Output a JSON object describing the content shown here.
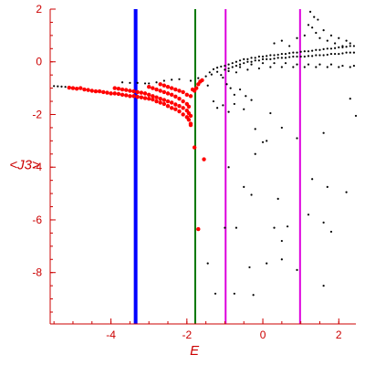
{
  "chart_data": {
    "type": "scatter",
    "title": "",
    "xlabel": "E",
    "ylabel": "<J3>",
    "xlim": [
      -5.6,
      2.45
    ],
    "ylim": [
      -9.95,
      2
    ],
    "grid": false,
    "colors": {
      "axis": "#cc0000",
      "highlight_points": "#ff0000",
      "other_points": "#000000",
      "blue_line": "#0000ff",
      "green_line": "#007700",
      "magenta_line": "#dd00dd"
    },
    "x_ticks": [
      {
        "value": -4,
        "label": "-4"
      },
      {
        "value": -2,
        "label": "-2"
      },
      {
        "value": 0,
        "label": "0"
      },
      {
        "value": 2,
        "label": "2"
      }
    ],
    "y_ticks": [
      {
        "value": 2,
        "label": "2"
      },
      {
        "value": 0,
        "label": "0"
      },
      {
        "value": -2,
        "label": "-2"
      },
      {
        "value": -4,
        "label": "-4"
      },
      {
        "value": -6,
        "label": "-6"
      },
      {
        "value": -8,
        "label": "-8"
      }
    ],
    "vertical_lines": [
      {
        "name": "blue",
        "x": -3.35,
        "color": "#0000ff",
        "width": 4
      },
      {
        "name": "green",
        "x": -1.78,
        "color": "#007700",
        "width": 2
      },
      {
        "name": "magenta-1",
        "x": -0.98,
        "color": "#dd00dd",
        "width": 2
      },
      {
        "name": "magenta-2",
        "x": 0.98,
        "color": "#dd00dd",
        "width": 2
      }
    ],
    "series": [
      {
        "color": "#ff0000",
        "points": [
          [
            -5.1,
            -0.98
          ],
          [
            -5.0,
            -1.0
          ],
          [
            -4.9,
            -1.02
          ],
          [
            -4.8,
            -1.0
          ],
          [
            -4.7,
            -1.05
          ],
          [
            -4.6,
            -1.07
          ],
          [
            -4.5,
            -1.1
          ],
          [
            -4.4,
            -1.12
          ],
          [
            -4.3,
            -1.12
          ],
          [
            -4.2,
            -1.15
          ],
          [
            -4.1,
            -1.17
          ],
          [
            -4.0,
            -1.2
          ],
          [
            -3.9,
            -1.2
          ],
          [
            -3.8,
            -1.22
          ],
          [
            -3.7,
            -1.25
          ],
          [
            -3.6,
            -1.27
          ],
          [
            -3.5,
            -1.3
          ],
          [
            -3.4,
            -1.3
          ],
          [
            -3.3,
            -1.33
          ],
          [
            -3.2,
            -1.35
          ],
          [
            -3.1,
            -1.38
          ],
          [
            -3.0,
            -1.4
          ],
          [
            -2.9,
            -1.43
          ],
          [
            -2.8,
            -1.5
          ],
          [
            -2.7,
            -1.55
          ],
          [
            -2.6,
            -1.6
          ],
          [
            -2.5,
            -1.68
          ],
          [
            -2.4,
            -1.75
          ],
          [
            -2.3,
            -1.8
          ],
          [
            -2.2,
            -1.88
          ],
          [
            -2.1,
            -2.0
          ],
          [
            -2.0,
            -2.1
          ],
          [
            -1.95,
            -2.2
          ],
          [
            -1.9,
            -2.35
          ],
          [
            -3.9,
            -1.0
          ],
          [
            -3.8,
            -1.02
          ],
          [
            -3.7,
            -1.05
          ],
          [
            -3.6,
            -1.07
          ],
          [
            -3.5,
            -1.1
          ],
          [
            -3.4,
            -1.12
          ],
          [
            -3.3,
            -1.15
          ],
          [
            -3.2,
            -1.17
          ],
          [
            -3.1,
            -1.2
          ],
          [
            -3.0,
            -1.25
          ],
          [
            -2.9,
            -1.3
          ],
          [
            -2.8,
            -1.35
          ],
          [
            -2.7,
            -1.4
          ],
          [
            -2.6,
            -1.45
          ],
          [
            -2.5,
            -1.5
          ],
          [
            -2.4,
            -1.55
          ],
          [
            -2.3,
            -1.62
          ],
          [
            -2.2,
            -1.68
          ],
          [
            -2.1,
            -1.75
          ],
          [
            -2.0,
            -1.85
          ],
          [
            -1.95,
            -1.95
          ],
          [
            -1.9,
            -2.05
          ],
          [
            -3.0,
            -0.95
          ],
          [
            -2.9,
            -1.0
          ],
          [
            -2.8,
            -1.05
          ],
          [
            -2.7,
            -1.1
          ],
          [
            -2.6,
            -1.15
          ],
          [
            -2.5,
            -1.2
          ],
          [
            -2.4,
            -1.25
          ],
          [
            -2.3,
            -1.32
          ],
          [
            -2.2,
            -1.4
          ],
          [
            -2.1,
            -1.5
          ],
          [
            -2.0,
            -1.6
          ],
          [
            -1.95,
            -1.7
          ],
          [
            -2.7,
            -0.85
          ],
          [
            -2.6,
            -0.9
          ],
          [
            -2.5,
            -0.95
          ],
          [
            -2.4,
            -1.0
          ],
          [
            -2.3,
            -1.05
          ],
          [
            -2.2,
            -1.1
          ],
          [
            -2.1,
            -1.15
          ],
          [
            -2.0,
            -1.25
          ],
          [
            -1.9,
            -1.3
          ],
          [
            -1.85,
            -1.05
          ],
          [
            -1.8,
            -1.1
          ],
          [
            -1.75,
            -1.0
          ],
          [
            -1.7,
            -0.85
          ],
          [
            -1.65,
            -0.75
          ],
          [
            -1.6,
            -0.7
          ],
          [
            -1.8,
            -3.25
          ],
          [
            -1.55,
            -3.7
          ],
          [
            -1.7,
            -6.35
          ],
          [
            -1.9,
            -2.4
          ]
        ]
      },
      {
        "color": "#000000",
        "points": [
          [
            -5.5,
            -0.92
          ],
          [
            -5.4,
            -0.93
          ],
          [
            -5.3,
            -0.94
          ],
          [
            -5.2,
            -0.95
          ],
          [
            -3.7,
            -0.78
          ],
          [
            -3.5,
            -0.8
          ],
          [
            -3.3,
            -0.8
          ],
          [
            -3.1,
            -0.82
          ],
          [
            -3.0,
            -0.82
          ],
          [
            -2.8,
            -0.78
          ],
          [
            -2.6,
            -0.72
          ],
          [
            -2.4,
            -0.68
          ],
          [
            -2.2,
            -0.66
          ],
          [
            -1.4,
            -0.4
          ],
          [
            -1.3,
            -0.28
          ],
          [
            -1.2,
            -0.22
          ],
          [
            -1.1,
            -0.18
          ],
          [
            -1.0,
            -0.15
          ],
          [
            -0.9,
            -0.1
          ],
          [
            -0.8,
            -0.05
          ],
          [
            -0.7,
            0.0
          ],
          [
            -0.6,
            0.05
          ],
          [
            -0.5,
            0.1
          ],
          [
            -0.4,
            0.1
          ],
          [
            -0.3,
            0.15
          ],
          [
            -0.2,
            0.15
          ],
          [
            -0.1,
            0.2
          ],
          [
            0.0,
            0.2
          ],
          [
            0.1,
            0.22
          ],
          [
            0.2,
            0.25
          ],
          [
            0.3,
            0.25
          ],
          [
            0.4,
            0.27
          ],
          [
            0.5,
            0.3
          ],
          [
            0.6,
            0.3
          ],
          [
            0.7,
            0.33
          ],
          [
            0.8,
            0.35
          ],
          [
            0.9,
            0.35
          ],
          [
            1.0,
            0.38
          ],
          [
            1.1,
            0.4
          ],
          [
            1.2,
            0.4
          ],
          [
            1.3,
            0.42
          ],
          [
            1.4,
            0.45
          ],
          [
            1.5,
            0.45
          ],
          [
            1.6,
            0.48
          ],
          [
            1.7,
            0.5
          ],
          [
            1.8,
            0.5
          ],
          [
            1.9,
            0.52
          ],
          [
            2.0,
            0.55
          ],
          [
            2.1,
            0.55
          ],
          [
            2.2,
            0.57
          ],
          [
            2.3,
            0.6
          ],
          [
            2.4,
            0.6
          ],
          [
            -1.0,
            -0.3
          ],
          [
            -0.9,
            -0.25
          ],
          [
            -0.8,
            -0.2
          ],
          [
            -0.7,
            -0.15
          ],
          [
            -0.6,
            -0.1
          ],
          [
            -0.5,
            -0.05
          ],
          [
            -0.4,
            0.0
          ],
          [
            -0.3,
            0.0
          ],
          [
            -0.2,
            0.05
          ],
          [
            -0.1,
            0.05
          ],
          [
            0.0,
            0.1
          ],
          [
            0.1,
            0.1
          ],
          [
            0.2,
            0.1
          ],
          [
            0.3,
            0.12
          ],
          [
            0.4,
            0.15
          ],
          [
            0.5,
            0.15
          ],
          [
            0.6,
            0.15
          ],
          [
            0.7,
            0.18
          ],
          [
            0.8,
            0.2
          ],
          [
            0.9,
            0.2
          ],
          [
            1.0,
            0.2
          ],
          [
            1.1,
            0.2
          ],
          [
            1.2,
            0.22
          ],
          [
            1.3,
            0.22
          ],
          [
            1.4,
            0.25
          ],
          [
            1.5,
            0.25
          ],
          [
            1.6,
            0.25
          ],
          [
            1.7,
            0.27
          ],
          [
            1.8,
            0.3
          ],
          [
            1.9,
            0.3
          ],
          [
            2.0,
            0.3
          ],
          [
            2.1,
            0.32
          ],
          [
            2.2,
            0.35
          ],
          [
            2.3,
            0.35
          ],
          [
            2.4,
            0.35
          ],
          [
            -0.9,
            -0.35
          ],
          [
            -0.6,
            -0.2
          ],
          [
            -0.3,
            -0.1
          ],
          [
            0.0,
            -0.05
          ],
          [
            0.3,
            -0.05
          ],
          [
            0.6,
            -0.05
          ],
          [
            0.9,
            -0.1
          ],
          [
            1.2,
            -0.1
          ],
          [
            1.5,
            -0.1
          ],
          [
            1.8,
            -0.1
          ],
          [
            2.1,
            -0.15
          ],
          [
            2.4,
            -0.15
          ],
          [
            -0.7,
            -0.4
          ],
          [
            -0.4,
            -0.3
          ],
          [
            -0.1,
            -0.25
          ],
          [
            0.2,
            -0.2
          ],
          [
            0.5,
            -0.2
          ],
          [
            0.8,
            -0.2
          ],
          [
            1.1,
            -0.2
          ],
          [
            1.4,
            -0.2
          ],
          [
            1.7,
            -0.2
          ],
          [
            2.0,
            -0.2
          ],
          [
            2.3,
            -0.2
          ],
          [
            0.3,
            0.7
          ],
          [
            0.5,
            0.8
          ],
          [
            0.7,
            0.6
          ],
          [
            0.9,
            0.9
          ],
          [
            1.1,
            1.0
          ],
          [
            1.2,
            1.4
          ],
          [
            1.3,
            1.3
          ],
          [
            1.4,
            1.1
          ],
          [
            1.5,
            0.9
          ],
          [
            1.6,
            1.2
          ],
          [
            1.7,
            0.8
          ],
          [
            1.8,
            1.0
          ],
          [
            1.9,
            0.7
          ],
          [
            2.0,
            0.9
          ],
          [
            2.1,
            0.6
          ],
          [
            2.2,
            0.8
          ],
          [
            2.3,
            0.7
          ],
          [
            1.25,
            1.9
          ],
          [
            1.45,
            1.6
          ],
          [
            1.35,
            1.7
          ],
          [
            -1.9,
            -0.72
          ],
          [
            -1.7,
            -0.62
          ],
          [
            -1.5,
            -0.55
          ],
          [
            -1.35,
            -0.48
          ],
          [
            -1.2,
            -0.38
          ],
          [
            -1.1,
            -0.5
          ],
          [
            -1.05,
            -0.6
          ],
          [
            -0.95,
            -0.85
          ],
          [
            -0.85,
            -1.0
          ],
          [
            -0.75,
            -1.25
          ],
          [
            -0.6,
            -1.05
          ],
          [
            -0.45,
            -1.3
          ],
          [
            -0.3,
            -1.45
          ],
          [
            -1.45,
            -0.9
          ],
          [
            -1.3,
            -1.5
          ],
          [
            -1.2,
            -1.75
          ],
          [
            -1.05,
            -1.65
          ],
          [
            -0.9,
            -1.9
          ],
          [
            -0.75,
            -1.6
          ],
          [
            -0.5,
            -1.8
          ],
          [
            -0.2,
            -2.55
          ],
          [
            0.0,
            -3.05
          ],
          [
            0.2,
            -1.95
          ],
          [
            0.5,
            -2.5
          ],
          [
            0.9,
            -2.9
          ],
          [
            1.6,
            -2.7
          ],
          [
            2.3,
            -1.4
          ],
          [
            2.45,
            -2.05
          ],
          [
            -0.9,
            -4.0
          ],
          [
            -0.5,
            -4.75
          ],
          [
            -0.2,
            -3.5
          ],
          [
            0.1,
            -3.0
          ],
          [
            -0.3,
            -5.05
          ],
          [
            0.4,
            -5.2
          ],
          [
            1.3,
            -4.45
          ],
          [
            1.7,
            -4.75
          ],
          [
            2.2,
            -4.95
          ],
          [
            -1.0,
            -6.3
          ],
          [
            -0.7,
            -6.3
          ],
          [
            0.3,
            -6.3
          ],
          [
            0.65,
            -6.25
          ],
          [
            1.2,
            -5.8
          ],
          [
            1.6,
            -6.1
          ],
          [
            1.8,
            -6.45
          ],
          [
            0.5,
            -6.8
          ],
          [
            -1.45,
            -7.65
          ],
          [
            -0.35,
            -7.8
          ],
          [
            0.1,
            -7.65
          ],
          [
            0.5,
            -7.5
          ],
          [
            0.9,
            -7.9
          ],
          [
            -1.25,
            -8.8
          ],
          [
            -0.75,
            -8.8
          ],
          [
            -0.25,
            -8.85
          ],
          [
            1.6,
            -8.5
          ]
        ]
      }
    ]
  }
}
